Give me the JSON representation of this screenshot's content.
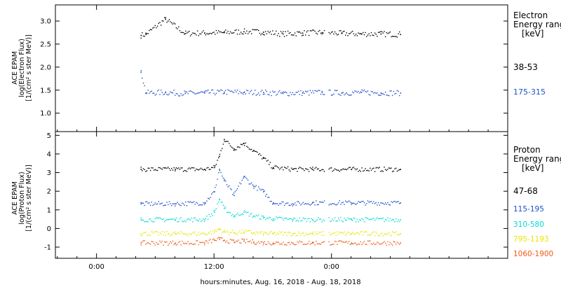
{
  "xlabel": "hours:minutes, Aug. 16, 2018 - Aug. 18, 2018",
  "x_ticks": [
    "0:00",
    "12:00",
    "0:00"
  ],
  "chart_data": [
    {
      "type": "scatter",
      "ylabel_lines": [
        "ACE EPAM",
        "log(Electron Flux)",
        "[1/(cm² s ster MeV)]"
      ],
      "ylim": [
        0.6,
        3.35
      ],
      "y_ticks": [
        "1.0",
        "1.5",
        "2.0",
        "2.5",
        "3.0"
      ],
      "legend_title": [
        "Electron",
        "Energy ranges",
        "[keV]"
      ],
      "series": [
        {
          "name": "38-53",
          "color": "#000000",
          "x": [
            -7.5,
            -7,
            -5,
            -3,
            -1,
            1,
            3,
            5,
            7,
            9,
            11,
            13,
            15,
            17,
            19
          ],
          "y": [
            2.7,
            2.72,
            3.05,
            2.74,
            2.75,
            2.76,
            2.78,
            2.77,
            2.73,
            2.75,
            2.76,
            2.74,
            2.73,
            2.73,
            2.72
          ]
        },
        {
          "name": "175-315",
          "color": "#1e50c8",
          "x": [
            -7.5,
            -7,
            -5,
            -3,
            -1,
            1,
            3,
            5,
            7,
            9,
            11,
            13,
            15,
            17,
            19
          ],
          "y": [
            1.93,
            1.45,
            1.46,
            1.44,
            1.45,
            1.47,
            1.46,
            1.46,
            1.44,
            1.45,
            1.46,
            1.45,
            1.46,
            1.45,
            1.45
          ]
        }
      ]
    },
    {
      "type": "scatter",
      "ylabel_lines": [
        "ACE EPAM",
        "log(Proton Flux)",
        "[1/(cm² s ster MeV)]"
      ],
      "ylim": [
        -1.6,
        5.2
      ],
      "y_ticks": [
        "-1",
        "0",
        "1",
        "2",
        "3",
        "4",
        "5"
      ],
      "legend_title": [
        "Proton",
        "Energy ranges",
        "[keV]"
      ],
      "series": [
        {
          "name": "47-68",
          "color": "#000000",
          "x": [
            -7.5,
            -4,
            -1,
            0,
            0.5,
            1,
            2,
            3,
            4,
            5,
            6,
            8,
            10,
            14,
            19
          ],
          "y": [
            3.2,
            3.2,
            3.2,
            3.3,
            3.9,
            4.8,
            4.3,
            4.6,
            4.2,
            3.8,
            3.3,
            3.2,
            3.2,
            3.2,
            3.2
          ]
        },
        {
          "name": "115-195",
          "color": "#1e50c8",
          "x": [
            -7.5,
            -4,
            -1,
            0,
            0.5,
            1,
            2,
            3,
            4,
            5,
            6,
            8,
            10,
            14,
            19
          ],
          "y": [
            1.35,
            1.35,
            1.4,
            2.0,
            3.2,
            2.6,
            1.8,
            2.8,
            2.3,
            2.0,
            1.4,
            1.35,
            1.4,
            1.4,
            1.4
          ]
        },
        {
          "name": "310-580",
          "color": "#00d8d8",
          "x": [
            -7.5,
            -4,
            -1,
            0,
            0.5,
            1,
            2,
            3,
            4,
            5,
            6,
            8,
            10,
            14,
            19
          ],
          "y": [
            0.5,
            0.5,
            0.5,
            0.9,
            1.6,
            1.1,
            0.7,
            0.9,
            0.7,
            0.6,
            0.55,
            0.5,
            0.5,
            0.5,
            0.5
          ]
        },
        {
          "name": "795-1193",
          "color": "#e6e600",
          "x": [
            -7.5,
            -4,
            -1,
            0,
            0.5,
            1,
            2,
            3,
            4,
            5,
            6,
            8,
            10,
            14,
            19
          ],
          "y": [
            -0.25,
            -0.25,
            -0.25,
            -0.15,
            0.0,
            -0.15,
            -0.2,
            -0.15,
            -0.2,
            -0.25,
            -0.25,
            -0.25,
            -0.25,
            -0.25,
            -0.25
          ]
        },
        {
          "name": "1060-1900",
          "color": "#f05a14",
          "x": [
            -7.5,
            -4,
            -1,
            0,
            0.5,
            1,
            2,
            3,
            4,
            5,
            6,
            8,
            10,
            14,
            19
          ],
          "y": [
            -0.75,
            -0.75,
            -0.75,
            -0.6,
            -0.55,
            -0.6,
            -0.7,
            -0.65,
            -0.7,
            -0.75,
            -0.75,
            -0.75,
            -0.75,
            -0.75,
            -0.75
          ]
        }
      ]
    }
  ]
}
